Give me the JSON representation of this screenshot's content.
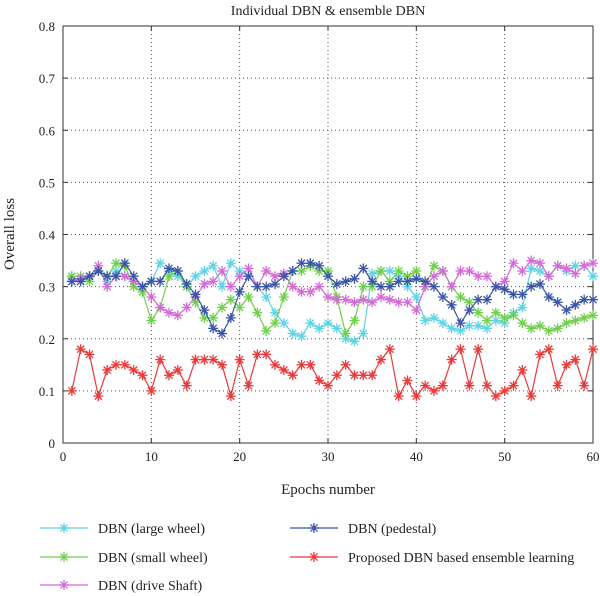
{
  "chart_data": {
    "type": "line",
    "title": "Individual DBN & ensemble DBN",
    "xlabel": "Epochs number",
    "ylabel": "Overall loss",
    "xlim": [
      0,
      60
    ],
    "ylim": [
      0,
      0.8
    ],
    "xticks": [
      "0",
      "10",
      "20",
      "30",
      "40",
      "50",
      "60"
    ],
    "yticks": [
      "0",
      "0.1",
      "0.2",
      "0.3",
      "0.4",
      "0.5",
      "0.6",
      "0.7",
      "0.8"
    ],
    "grid": "dotted",
    "legend_position": "bottom",
    "x": [
      1,
      2,
      3,
      4,
      5,
      6,
      7,
      8,
      9,
      10,
      11,
      12,
      13,
      14,
      15,
      16,
      17,
      18,
      19,
      20,
      21,
      22,
      23,
      24,
      25,
      26,
      27,
      28,
      29,
      30,
      31,
      32,
      33,
      34,
      35,
      36,
      37,
      38,
      39,
      40,
      41,
      42,
      43,
      44,
      45,
      46,
      47,
      48,
      49,
      50,
      51,
      52,
      53,
      54,
      55,
      56,
      57,
      58,
      59,
      60
    ],
    "series": [
      {
        "name": "DBN (large wheel)",
        "color": "#5fd3e6",
        "values": [
          0.32,
          0.31,
          0.32,
          0.33,
          0.31,
          0.33,
          0.32,
          0.31,
          0.3,
          0.31,
          0.345,
          0.33,
          0.32,
          0.3,
          0.32,
          0.33,
          0.34,
          0.3,
          0.345,
          0.33,
          0.32,
          0.3,
          0.28,
          0.25,
          0.23,
          0.21,
          0.205,
          0.23,
          0.22,
          0.23,
          0.22,
          0.2,
          0.195,
          0.21,
          0.325,
          0.33,
          0.33,
          0.32,
          0.3,
          0.28,
          0.235,
          0.24,
          0.23,
          0.22,
          0.215,
          0.225,
          0.225,
          0.22,
          0.235,
          0.23,
          0.25,
          0.26,
          0.335,
          0.33,
          0.32,
          0.34,
          0.33,
          0.34,
          0.34,
          0.32
        ]
      },
      {
        "name": "DBN (small wheel)",
        "color": "#6ed04a",
        "values": [
          0.32,
          0.32,
          0.31,
          0.33,
          0.32,
          0.345,
          0.34,
          0.3,
          0.29,
          0.235,
          0.26,
          0.32,
          0.33,
          0.3,
          0.27,
          0.24,
          0.24,
          0.26,
          0.275,
          0.26,
          0.28,
          0.25,
          0.215,
          0.23,
          0.28,
          0.33,
          0.33,
          0.34,
          0.33,
          0.33,
          0.28,
          0.21,
          0.235,
          0.3,
          0.3,
          0.33,
          0.31,
          0.33,
          0.32,
          0.33,
          0.3,
          0.34,
          0.33,
          0.3,
          0.28,
          0.27,
          0.25,
          0.235,
          0.25,
          0.24,
          0.245,
          0.23,
          0.22,
          0.225,
          0.215,
          0.22,
          0.23,
          0.235,
          0.24,
          0.245
        ]
      },
      {
        "name": "DBN (drive Shaft)",
        "color": "#d36bd6",
        "values": [
          0.31,
          0.315,
          0.32,
          0.34,
          0.3,
          0.32,
          0.32,
          0.31,
          0.3,
          0.28,
          0.26,
          0.25,
          0.245,
          0.26,
          0.28,
          0.305,
          0.31,
          0.33,
          0.3,
          0.32,
          0.335,
          0.3,
          0.33,
          0.32,
          0.325,
          0.3,
          0.29,
          0.29,
          0.3,
          0.28,
          0.275,
          0.275,
          0.27,
          0.275,
          0.27,
          0.28,
          0.275,
          0.27,
          0.27,
          0.255,
          0.3,
          0.32,
          0.33,
          0.3,
          0.33,
          0.33,
          0.32,
          0.32,
          0.3,
          0.31,
          0.345,
          0.33,
          0.35,
          0.345,
          0.32,
          0.34,
          0.335,
          0.325,
          0.34,
          0.345
        ]
      },
      {
        "name": "DBN (pedestal)",
        "color": "#3b55a8",
        "values": [
          0.31,
          0.31,
          0.32,
          0.33,
          0.32,
          0.32,
          0.345,
          0.32,
          0.3,
          0.31,
          0.31,
          0.335,
          0.33,
          0.305,
          0.285,
          0.255,
          0.22,
          0.21,
          0.24,
          0.29,
          0.32,
          0.3,
          0.3,
          0.305,
          0.32,
          0.33,
          0.345,
          0.345,
          0.34,
          0.32,
          0.305,
          0.31,
          0.315,
          0.335,
          0.31,
          0.3,
          0.3,
          0.31,
          0.31,
          0.315,
          0.31,
          0.3,
          0.28,
          0.265,
          0.23,
          0.255,
          0.275,
          0.275,
          0.3,
          0.295,
          0.285,
          0.285,
          0.3,
          0.305,
          0.28,
          0.27,
          0.255,
          0.265,
          0.275,
          0.275
        ]
      },
      {
        "name": "Proposed DBN based ensemble learning",
        "color": "#e83a3a",
        "values": [
          0.1,
          0.18,
          0.17,
          0.09,
          0.14,
          0.15,
          0.15,
          0.14,
          0.13,
          0.1,
          0.16,
          0.13,
          0.14,
          0.11,
          0.16,
          0.16,
          0.16,
          0.15,
          0.09,
          0.16,
          0.11,
          0.17,
          0.17,
          0.15,
          0.14,
          0.13,
          0.15,
          0.15,
          0.12,
          0.11,
          0.13,
          0.15,
          0.13,
          0.13,
          0.13,
          0.16,
          0.18,
          0.09,
          0.12,
          0.09,
          0.11,
          0.1,
          0.11,
          0.16,
          0.18,
          0.11,
          0.18,
          0.11,
          0.09,
          0.1,
          0.11,
          0.14,
          0.09,
          0.17,
          0.18,
          0.11,
          0.15,
          0.16,
          0.11,
          0.18
        ]
      }
    ]
  }
}
